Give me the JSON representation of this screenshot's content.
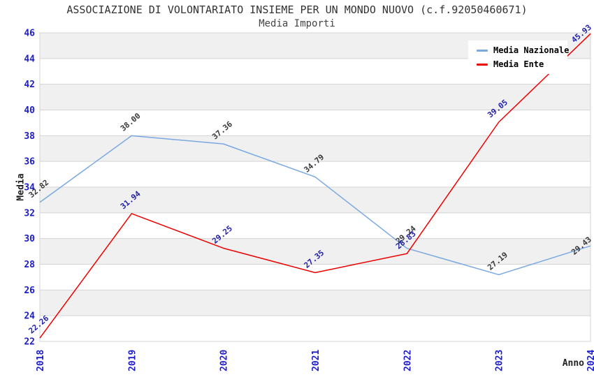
{
  "header": {
    "title": "ASSOCIAZIONE DI VOLONTARIATO INSIEME PER UN MONDO NUOVO (c.f.92050460671)",
    "subtitle": "Media Importi"
  },
  "axes": {
    "y_label": "Media",
    "x_label": "Anno"
  },
  "legend": [
    {
      "name": "Media Nazionale",
      "color": "#7aa8e0"
    },
    {
      "name": "Media Ente",
      "color": "#ee0000"
    }
  ],
  "chart_data": {
    "type": "line",
    "title": "ASSOCIAZIONE DI VOLONTARIATO INSIEME PER UN MONDO NUOVO (c.f.92050460671)",
    "subtitle": "Media Importi",
    "xlabel": "Anno",
    "ylabel": "Media",
    "x": [
      2018,
      2019,
      2020,
      2021,
      2022,
      2023,
      2024
    ],
    "series": [
      {
        "name": "Media Nazionale",
        "color": "#7aa8e0",
        "label_color": "#3a3a3a",
        "values": [
          32.82,
          38.0,
          37.36,
          34.79,
          29.24,
          27.19,
          29.43
        ]
      },
      {
        "name": "Media Ente",
        "color": "#ee0000",
        "label_color": "#2222aa",
        "values": [
          22.26,
          31.94,
          29.25,
          27.35,
          28.83,
          39.05,
          45.93
        ]
      }
    ],
    "ylim": [
      22,
      46
    ],
    "y_tick_step": 2,
    "grid": true,
    "band_colors": [
      "#ffffff",
      "#f0f0f0"
    ],
    "grid_color": "#d4d4d4",
    "tick_color": "#1c1ccd",
    "legend_position": "top-right"
  }
}
